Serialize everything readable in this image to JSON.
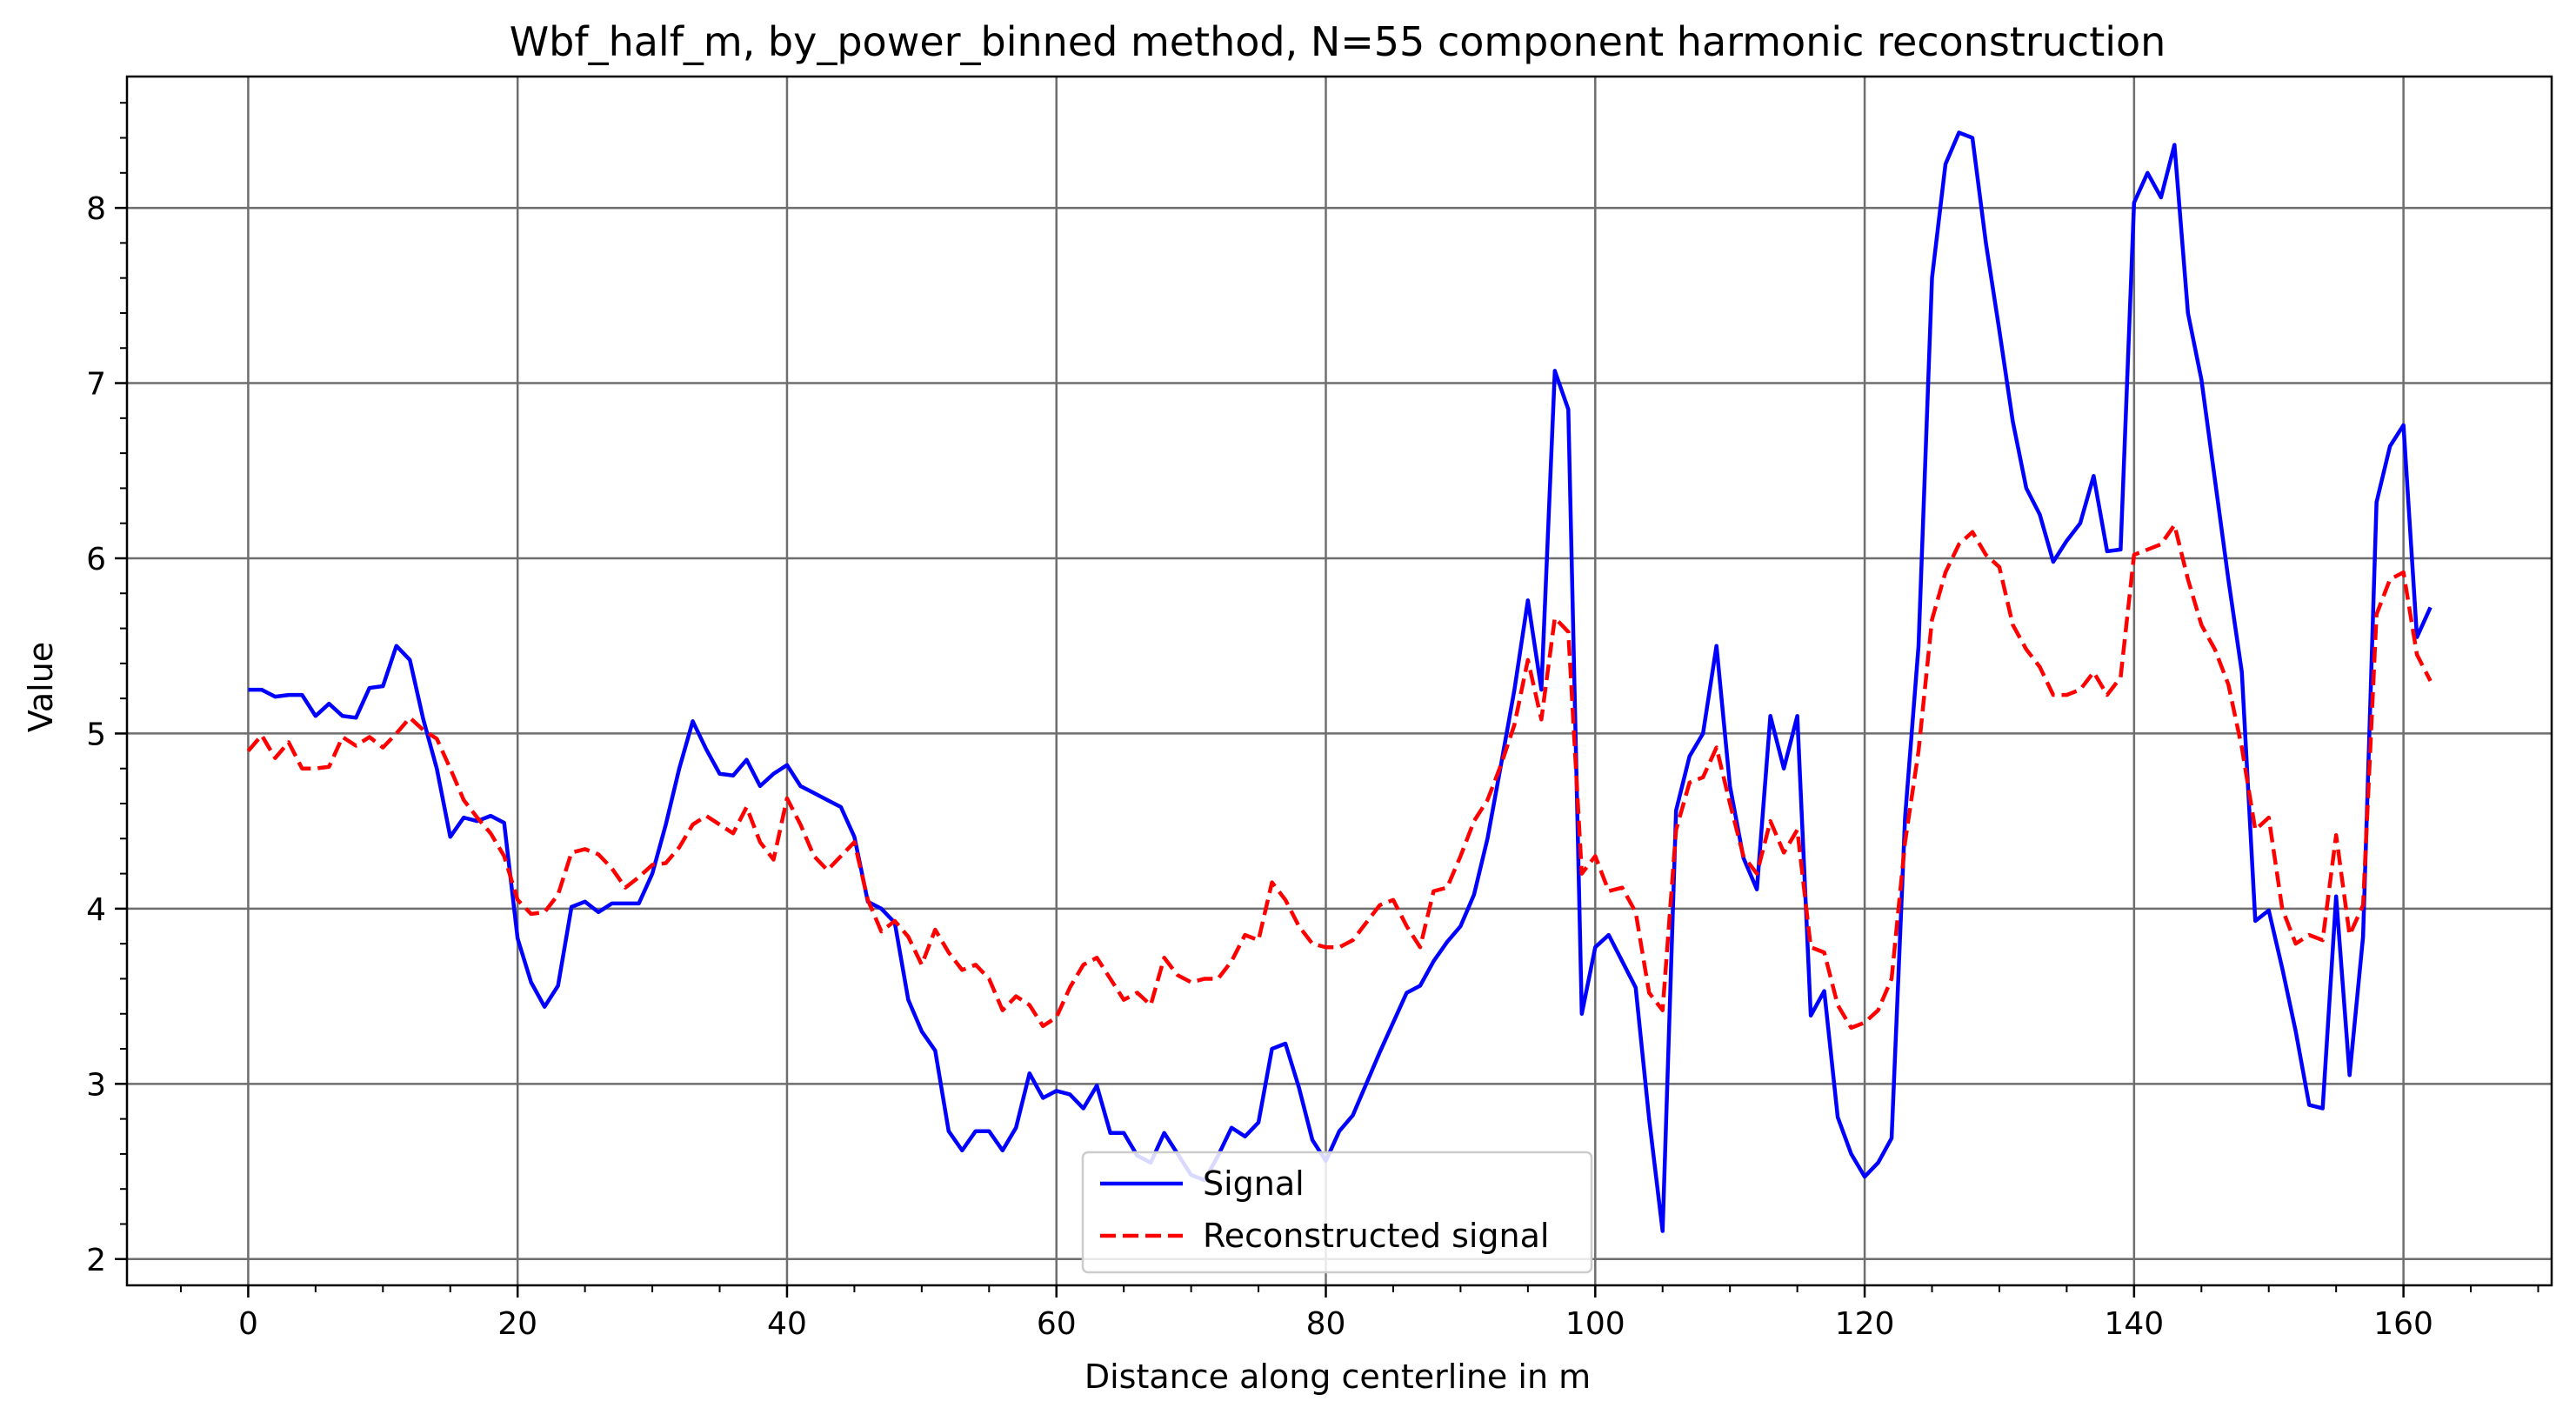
{
  "chart_data": {
    "type": "line",
    "title": "Wbf_half_m, by_power_binned method, N=55 component harmonic reconstruction",
    "xlabel": "Distance along centerline in m",
    "ylabel": "Value",
    "xlim": [
      -9,
      171
    ],
    "ylim": [
      1.85,
      8.75
    ],
    "x_ticks": [
      0,
      20,
      40,
      60,
      80,
      100,
      120,
      140,
      160
    ],
    "y_ticks": [
      2,
      3,
      4,
      5,
      6,
      7,
      8
    ],
    "x_tick_labels": [
      "0",
      "20",
      "40",
      "60",
      "80",
      "100",
      "120",
      "140",
      "160"
    ],
    "y_tick_labels": [
      "2",
      "3",
      "4",
      "5",
      "6",
      "7",
      "8"
    ],
    "grid": true,
    "legend_position": "lower-center",
    "series": [
      {
        "name": "Signal",
        "color": "#0000ff",
        "style": "solid",
        "x": [
          0,
          1,
          2,
          3,
          4,
          5,
          6,
          7,
          8,
          9,
          10,
          11,
          12,
          13,
          14,
          15,
          16,
          17,
          18,
          19,
          20,
          21,
          22,
          23,
          24,
          25,
          26,
          27,
          28,
          29,
          30,
          31,
          32,
          33,
          34,
          35,
          36,
          37,
          38,
          39,
          40,
          41,
          42,
          43,
          44,
          45,
          46,
          47,
          48,
          49,
          50,
          51,
          52,
          53,
          54,
          55,
          56,
          57,
          58,
          59,
          60,
          61,
          62,
          63,
          64,
          65,
          66,
          67,
          68,
          69,
          70,
          71,
          72,
          73,
          74,
          75,
          76,
          77,
          78,
          79,
          80,
          81,
          82,
          83,
          84,
          85,
          86,
          87,
          88,
          89,
          90,
          91,
          92,
          93,
          94,
          95,
          96,
          97,
          98,
          99,
          100,
          101,
          102,
          103,
          104,
          105,
          106,
          107,
          108,
          109,
          110,
          111,
          112,
          113,
          114,
          115,
          116,
          117,
          118,
          119,
          120,
          121,
          122,
          123,
          124,
          125,
          126,
          127,
          128,
          129,
          130,
          131,
          132,
          133,
          134,
          135,
          136,
          137,
          138,
          139,
          140,
          141,
          142,
          143,
          144,
          145,
          146,
          147,
          148,
          149,
          150,
          151,
          152,
          153,
          154,
          155,
          156,
          157,
          158,
          159,
          160,
          161,
          162
        ],
        "y": [
          5.25,
          5.25,
          5.21,
          5.22,
          5.22,
          5.1,
          5.17,
          5.1,
          5.09,
          5.26,
          5.27,
          5.5,
          5.42,
          5.08,
          4.8,
          4.41,
          4.52,
          4.5,
          4.53,
          4.49,
          3.83,
          3.58,
          3.44,
          3.56,
          4.01,
          4.04,
          3.98,
          4.03,
          4.03,
          4.03,
          4.2,
          4.48,
          4.8,
          5.07,
          4.91,
          4.77,
          4.76,
          4.85,
          4.7,
          4.77,
          4.82,
          4.7,
          4.66,
          4.62,
          4.58,
          4.41,
          4.04,
          4.0,
          3.92,
          3.48,
          3.3,
          3.19,
          2.73,
          2.62,
          2.73,
          2.73,
          2.62,
          2.75,
          3.06,
          2.92,
          2.96,
          2.94,
          2.86,
          2.99,
          2.72,
          2.72,
          2.59,
          2.55,
          2.72,
          2.6,
          2.48,
          2.45,
          2.59,
          2.75,
          2.7,
          2.78,
          3.2,
          3.23,
          2.98,
          2.68,
          2.56,
          2.73,
          2.82,
          3.0,
          3.18,
          3.35,
          3.52,
          3.56,
          3.7,
          3.81,
          3.9,
          4.08,
          4.4,
          4.82,
          5.25,
          5.76,
          5.25,
          7.07,
          6.85,
          3.4,
          3.78,
          3.85,
          3.7,
          3.55,
          2.8,
          2.16,
          4.56,
          4.87,
          5.0,
          5.5,
          4.7,
          4.29,
          4.11,
          5.1,
          4.8,
          5.1,
          3.39,
          3.53,
          2.81,
          2.6,
          2.47,
          2.55,
          2.69,
          4.52,
          5.5,
          7.6,
          8.25,
          8.43,
          8.4,
          7.8,
          7.3,
          6.78,
          6.4,
          6.25,
          5.98,
          6.1,
          6.2,
          6.47,
          6.04,
          6.05,
          8.03,
          8.2,
          8.06,
          8.36,
          7.4,
          7.02,
          6.45,
          5.88,
          5.35,
          3.93,
          3.99,
          3.66,
          3.3,
          2.88,
          2.86,
          4.07,
          3.05,
          3.84,
          6.32,
          6.64,
          6.76,
          5.55,
          5.72
        ]
      },
      {
        "name": "Reconstructed signal",
        "color": "#ff0000",
        "style": "dashed",
        "x": [
          0,
          1,
          2,
          3,
          4,
          5,
          6,
          7,
          8,
          9,
          10,
          11,
          12,
          13,
          14,
          15,
          16,
          17,
          18,
          19,
          20,
          21,
          22,
          23,
          24,
          25,
          26,
          27,
          28,
          29,
          30,
          31,
          32,
          33,
          34,
          35,
          36,
          37,
          38,
          39,
          40,
          41,
          42,
          43,
          44,
          45,
          46,
          47,
          48,
          49,
          50,
          51,
          52,
          53,
          54,
          55,
          56,
          57,
          58,
          59,
          60,
          61,
          62,
          63,
          64,
          65,
          66,
          67,
          68,
          69,
          70,
          71,
          72,
          73,
          74,
          75,
          76,
          77,
          78,
          79,
          80,
          81,
          82,
          83,
          84,
          85,
          86,
          87,
          88,
          89,
          90,
          91,
          92,
          93,
          94,
          95,
          96,
          97,
          98,
          99,
          100,
          101,
          102,
          103,
          104,
          105,
          106,
          107,
          108,
          109,
          110,
          111,
          112,
          113,
          114,
          115,
          116,
          117,
          118,
          119,
          120,
          121,
          122,
          123,
          124,
          125,
          126,
          127,
          128,
          129,
          130,
          131,
          132,
          133,
          134,
          135,
          136,
          137,
          138,
          139,
          140,
          141,
          142,
          143,
          144,
          145,
          146,
          147,
          148,
          149,
          150,
          151,
          152,
          153,
          154,
          155,
          156,
          157,
          158,
          159,
          160,
          161,
          162
        ],
        "y": [
          4.9,
          4.99,
          4.86,
          4.95,
          4.8,
          4.8,
          4.81,
          4.98,
          4.93,
          4.98,
          4.92,
          5.0,
          5.09,
          5.02,
          4.97,
          4.8,
          4.62,
          4.52,
          4.43,
          4.3,
          4.05,
          3.97,
          3.98,
          4.08,
          4.32,
          4.34,
          4.31,
          4.23,
          4.12,
          4.18,
          4.25,
          4.26,
          4.35,
          4.48,
          4.53,
          4.48,
          4.43,
          4.58,
          4.38,
          4.28,
          4.63,
          4.48,
          4.3,
          4.22,
          4.3,
          4.38,
          4.05,
          3.87,
          3.93,
          3.84,
          3.68,
          3.88,
          3.75,
          3.65,
          3.68,
          3.6,
          3.42,
          3.5,
          3.45,
          3.33,
          3.38,
          3.55,
          3.68,
          3.72,
          3.6,
          3.48,
          3.52,
          3.45,
          3.72,
          3.62,
          3.58,
          3.6,
          3.6,
          3.7,
          3.85,
          3.82,
          4.15,
          4.05,
          3.9,
          3.8,
          3.78,
          3.78,
          3.82,
          3.92,
          4.02,
          4.05,
          3.9,
          3.78,
          4.1,
          4.12,
          4.3,
          4.5,
          4.62,
          4.82,
          5.05,
          5.42,
          5.08,
          5.66,
          5.58,
          4.2,
          4.3,
          4.1,
          4.12,
          3.98,
          3.52,
          3.42,
          4.45,
          4.72,
          4.75,
          4.92,
          4.6,
          4.3,
          4.2,
          4.5,
          4.32,
          4.45,
          3.78,
          3.75,
          3.45,
          3.32,
          3.35,
          3.42,
          3.6,
          4.38,
          4.9,
          5.65,
          5.92,
          6.08,
          6.15,
          6.02,
          5.95,
          5.62,
          5.48,
          5.38,
          5.22,
          5.22,
          5.25,
          5.35,
          5.22,
          5.32,
          6.02,
          6.05,
          6.08,
          6.19,
          5.88,
          5.62,
          5.48,
          5.28,
          4.92,
          4.45,
          4.52,
          4.0,
          3.8,
          3.85,
          3.82,
          4.42,
          3.85,
          4.02,
          5.68,
          5.88,
          5.92,
          5.45,
          5.3
        ]
      }
    ]
  }
}
